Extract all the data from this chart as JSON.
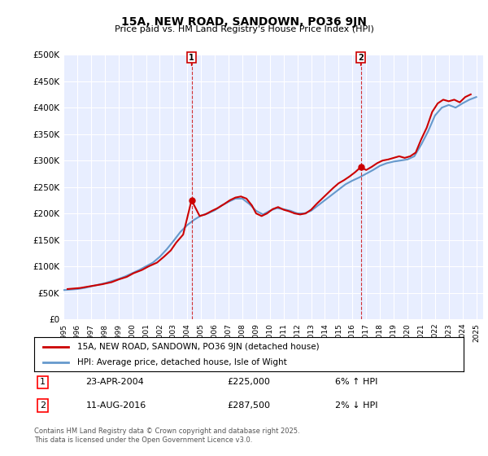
{
  "title": "15A, NEW ROAD, SANDOWN, PO36 9JN",
  "subtitle": "Price paid vs. HM Land Registry's House Price Index (HPI)",
  "ylabel": "",
  "xlabel": "",
  "ylim": [
    0,
    500000
  ],
  "yticks": [
    0,
    50000,
    100000,
    150000,
    200000,
    250000,
    300000,
    350000,
    400000,
    450000,
    500000
  ],
  "ytick_labels": [
    "£0",
    "£50K",
    "£100K",
    "£150K",
    "£200K",
    "£250K",
    "£300K",
    "£350K",
    "£400K",
    "£450K",
    "£500K"
  ],
  "line1_color": "#cc0000",
  "line2_color": "#6699cc",
  "vline_color": "#cc0000",
  "marker1_x": 2004.31,
  "marker2_x": 2016.61,
  "marker1_label": "1",
  "marker2_label": "2",
  "legend_line1": "15A, NEW ROAD, SANDOWN, PO36 9JN (detached house)",
  "legend_line2": "HPI: Average price, detached house, Isle of Wight",
  "annotation1_num": "1",
  "annotation1_date": "23-APR-2004",
  "annotation1_price": "£225,000",
  "annotation1_hpi": "6% ↑ HPI",
  "annotation2_num": "2",
  "annotation2_date": "11-AUG-2016",
  "annotation2_price": "£287,500",
  "annotation2_hpi": "2% ↓ HPI",
  "footer": "Contains HM Land Registry data © Crown copyright and database right 2025.\nThis data is licensed under the Open Government Licence v3.0.",
  "bg_color": "#f0f4ff",
  "plot_bg_color": "#e8eeff",
  "hpi_years": [
    1995,
    1995.5,
    1996,
    1996.5,
    1997,
    1997.5,
    1998,
    1998.5,
    1999,
    1999.5,
    2000,
    2000.5,
    2001,
    2001.5,
    2002,
    2002.5,
    2003,
    2003.5,
    2004,
    2004.5,
    2005,
    2005.5,
    2006,
    2006.5,
    2007,
    2007.5,
    2008,
    2008.5,
    2009,
    2009.5,
    2010,
    2010.5,
    2011,
    2011.5,
    2012,
    2012.5,
    2013,
    2013.5,
    2014,
    2014.5,
    2015,
    2015.5,
    2016,
    2016.5,
    2017,
    2017.5,
    2018,
    2018.5,
    2019,
    2019.5,
    2020,
    2020.5,
    2021,
    2021.5,
    2022,
    2022.5,
    2023,
    2023.5,
    2024,
    2024.5,
    2025
  ],
  "hpi_values": [
    55000,
    56000,
    57000,
    59000,
    62000,
    65000,
    68000,
    72000,
    76000,
    81000,
    87000,
    93000,
    100000,
    107000,
    118000,
    132000,
    148000,
    165000,
    178000,
    188000,
    196000,
    200000,
    206000,
    215000,
    222000,
    228000,
    228000,
    218000,
    205000,
    198000,
    205000,
    210000,
    208000,
    205000,
    200000,
    200000,
    205000,
    215000,
    225000,
    235000,
    245000,
    255000,
    262000,
    268000,
    275000,
    282000,
    290000,
    295000,
    298000,
    300000,
    302000,
    308000,
    330000,
    355000,
    385000,
    400000,
    405000,
    400000,
    408000,
    415000,
    420000
  ],
  "price_years": [
    1995.3,
    1996.2,
    1997.1,
    1997.8,
    1998.5,
    1999.0,
    1999.6,
    2000.1,
    2000.7,
    2001.2,
    2001.8,
    2002.3,
    2002.8,
    2003.2,
    2003.7,
    2004.31,
    2004.9,
    2005.3,
    2005.8,
    2006.2,
    2006.7,
    2007.1,
    2007.5,
    2007.9,
    2008.3,
    2008.7,
    2009.0,
    2009.4,
    2009.8,
    2010.2,
    2010.6,
    2011.0,
    2011.4,
    2011.8,
    2012.2,
    2012.6,
    2013.0,
    2013.4,
    2013.8,
    2014.2,
    2014.6,
    2015.0,
    2015.4,
    2015.8,
    2016.2,
    2016.61,
    2017.0,
    2017.4,
    2017.8,
    2018.2,
    2018.6,
    2019.0,
    2019.4,
    2019.8,
    2020.2,
    2020.6,
    2021.0,
    2021.4,
    2021.8,
    2022.2,
    2022.6,
    2023.0,
    2023.4,
    2023.8,
    2024.2,
    2024.6
  ],
  "price_values": [
    57000,
    59000,
    63000,
    66000,
    70000,
    75000,
    80000,
    87000,
    93000,
    100000,
    107000,
    118000,
    130000,
    145000,
    160000,
    225000,
    195000,
    198000,
    205000,
    210000,
    218000,
    225000,
    230000,
    232000,
    228000,
    215000,
    200000,
    195000,
    200000,
    208000,
    212000,
    207000,
    204000,
    200000,
    198000,
    200000,
    207000,
    218000,
    228000,
    238000,
    248000,
    257000,
    263000,
    270000,
    278000,
    287500,
    282000,
    288000,
    295000,
    300000,
    302000,
    305000,
    308000,
    305000,
    308000,
    315000,
    340000,
    362000,
    392000,
    408000,
    415000,
    412000,
    415000,
    410000,
    420000,
    425000
  ]
}
